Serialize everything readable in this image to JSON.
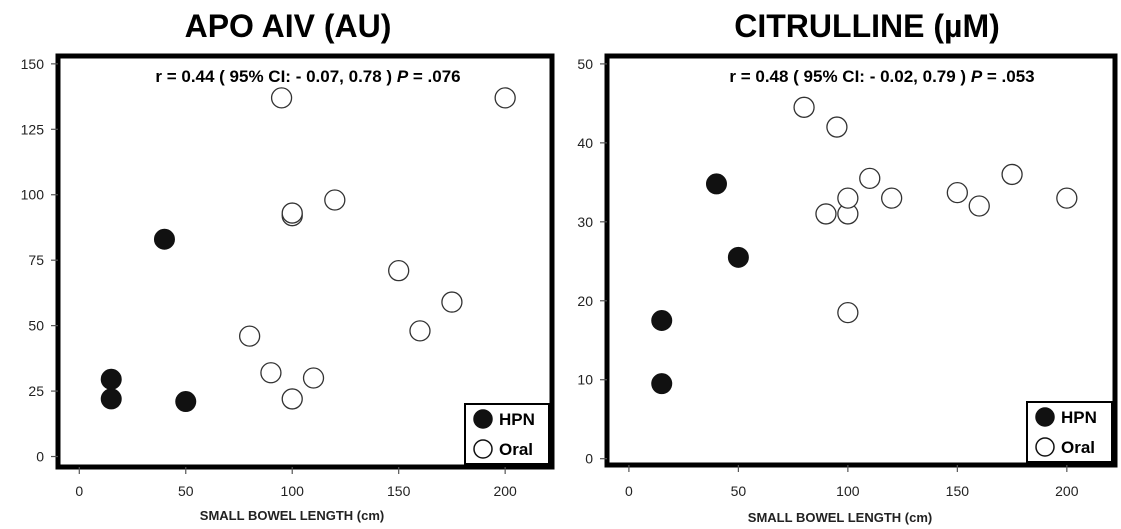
{
  "chart_data": [
    {
      "type": "scatter",
      "title": "APO AIV (AU)",
      "annotation": {
        "prefix": "r = 0.44 ( 95% CI: - 0.07, 0.78 )  ",
        "p_label": "P",
        "p_value": " = .076"
      },
      "xlabel": "SMALL BOWEL LENGTH (cm)",
      "ylabel": "",
      "xlim": [
        -10,
        222
      ],
      "ylim": [
        -4,
        153
      ],
      "xticks": [
        0,
        50,
        100,
        150,
        200
      ],
      "yticks": [
        0,
        25,
        50,
        75,
        100,
        125,
        150
      ],
      "legend_position": "bottom-right",
      "series": [
        {
          "name": "HPN",
          "marker": "filled",
          "color": "#111111",
          "points": [
            [
              15,
              22
            ],
            [
              15,
              29.5
            ],
            [
              40,
              83
            ],
            [
              50,
              21
            ]
          ]
        },
        {
          "name": "Oral",
          "marker": "open",
          "color": "#111111",
          "points": [
            [
              80,
              46
            ],
            [
              90,
              32
            ],
            [
              95,
              137
            ],
            [
              100,
              22
            ],
            [
              100,
              92
            ],
            [
              100,
              93
            ],
            [
              110,
              30
            ],
            [
              120,
              98
            ],
            [
              150,
              71
            ],
            [
              160,
              48
            ],
            [
              175,
              59
            ],
            [
              200,
              137
            ]
          ]
        }
      ]
    },
    {
      "type": "scatter",
      "title": "CITRULLINE (µM)",
      "annotation": {
        "prefix": "r = 0.48 ( 95% CI: - 0.02, 0.79 )  ",
        "p_label": "P",
        "p_value": " = .053"
      },
      "xlabel": "SMALL BOWEL LENGTH (cm)",
      "ylabel": "",
      "xlim": [
        -10,
        222
      ],
      "ylim": [
        -0.8,
        51
      ],
      "xticks": [
        0,
        50,
        100,
        150,
        200
      ],
      "yticks": [
        0,
        10,
        20,
        30,
        40,
        50
      ],
      "legend_position": "bottom-right",
      "series": [
        {
          "name": "HPN",
          "marker": "filled",
          "color": "#111111",
          "points": [
            [
              15,
              9.5
            ],
            [
              15,
              17.5
            ],
            [
              40,
              34.8
            ],
            [
              50,
              25.5
            ]
          ]
        },
        {
          "name": "Oral",
          "marker": "open",
          "color": "#111111",
          "points": [
            [
              80,
              44.5
            ],
            [
              90,
              31
            ],
            [
              95,
              42
            ],
            [
              100,
              18.5
            ],
            [
              100,
              31
            ],
            [
              100,
              33
            ],
            [
              110,
              35.5
            ],
            [
              120,
              33
            ],
            [
              150,
              33.7
            ],
            [
              160,
              32
            ],
            [
              175,
              36
            ],
            [
              200,
              33
            ]
          ]
        }
      ]
    }
  ]
}
